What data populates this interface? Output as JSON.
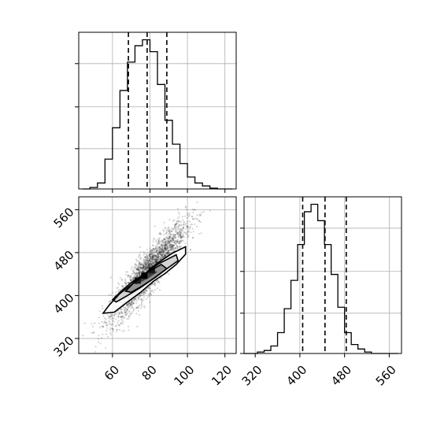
{
  "chart_data": [
    {
      "type": "histogram",
      "panel": "top-left",
      "variable": "x",
      "xlim": [
        42,
        126
      ],
      "bin_edges": [
        44,
        48,
        52,
        56,
        60,
        64,
        68,
        72,
        76,
        80,
        84,
        88,
        92,
        96,
        100,
        104,
        108,
        112,
        116,
        120,
        124
      ],
      "counts": [
        0.0,
        0.01,
        0.04,
        0.2,
        0.41,
        0.66,
        0.85,
        0.96,
        1.0,
        0.92,
        0.7,
        0.46,
        0.3,
        0.17,
        0.08,
        0.04,
        0.02,
        0.005,
        0.0,
        0.0
      ],
      "quantiles": [
        68.5,
        78.5,
        89
      ],
      "xticks": [
        60,
        80,
        100,
        120
      ],
      "grid": true
    },
    {
      "type": "histogram",
      "panel": "bottom-right",
      "variable": "y",
      "xlim": [
        300,
        582
      ],
      "bin_edges": [
        300,
        312,
        324,
        336,
        348,
        360,
        372,
        384,
        396,
        408,
        420,
        432,
        444,
        456,
        468,
        480,
        492,
        504,
        516,
        528,
        540,
        552,
        564,
        576
      ],
      "counts": [
        0.0,
        0.0,
        0.01,
        0.02,
        0.05,
        0.14,
        0.3,
        0.49,
        0.73,
        0.95,
        1.0,
        0.89,
        0.73,
        0.53,
        0.31,
        0.14,
        0.06,
        0.03,
        0.01,
        0.0,
        0.0,
        0.0,
        0.0
      ],
      "quantiles": [
        405,
        445,
        483
      ],
      "xticks": [
        320,
        400,
        480,
        560
      ],
      "xticklabels": [
        "320",
        "400",
        "480",
        "560"
      ],
      "grid": true
    },
    {
      "type": "scatter",
      "panel": "bottom-left",
      "xlim": [
        42,
        126
      ],
      "ylim": [
        292,
        584
      ],
      "xticks": [
        60,
        80,
        100,
        120
      ],
      "xticklabels": [
        "60",
        "80",
        "100",
        "120"
      ],
      "yticks": [
        320,
        400,
        480,
        560
      ],
      "yticklabels": [
        "320",
        "400",
        "480",
        "560"
      ],
      "mean": [
        79,
        444
      ],
      "sd": [
        10,
        45
      ],
      "correlation": 0.9,
      "point_count": 2600,
      "contour_levels": [
        [
          [
            55,
            367
          ],
          [
            58,
            381
          ],
          [
            64,
            404
          ],
          [
            70,
            420
          ],
          [
            76,
            436
          ],
          [
            83,
            458
          ],
          [
            92,
            479
          ],
          [
            99,
            491
          ],
          [
            99,
            477
          ],
          [
            94,
            458
          ],
          [
            88,
            441
          ],
          [
            82,
            427
          ],
          [
            75,
            406
          ],
          [
            68,
            388
          ],
          [
            61,
            369
          ]
        ],
        [
          [
            60,
            392
          ],
          [
            64,
            406
          ],
          [
            70,
            424
          ],
          [
            77,
            440
          ],
          [
            85,
            460
          ],
          [
            94,
            476
          ],
          [
            95,
            465
          ],
          [
            89,
            450
          ],
          [
            82,
            432
          ],
          [
            75,
            415
          ],
          [
            68,
            400
          ],
          [
            62,
            388
          ]
        ],
        [
          [
            67,
            408
          ],
          [
            72,
            426
          ],
          [
            78,
            442
          ],
          [
            86,
            458
          ],
          [
            89,
            450
          ],
          [
            83,
            434
          ],
          [
            76,
            418
          ],
          [
            70,
            406
          ]
        ],
        [
          [
            70,
            423
          ],
          [
            75,
            436
          ],
          [
            81,
            448
          ],
          [
            84,
            444
          ],
          [
            79,
            432
          ],
          [
            73,
            421
          ]
        ]
      ],
      "grid": true
    }
  ]
}
